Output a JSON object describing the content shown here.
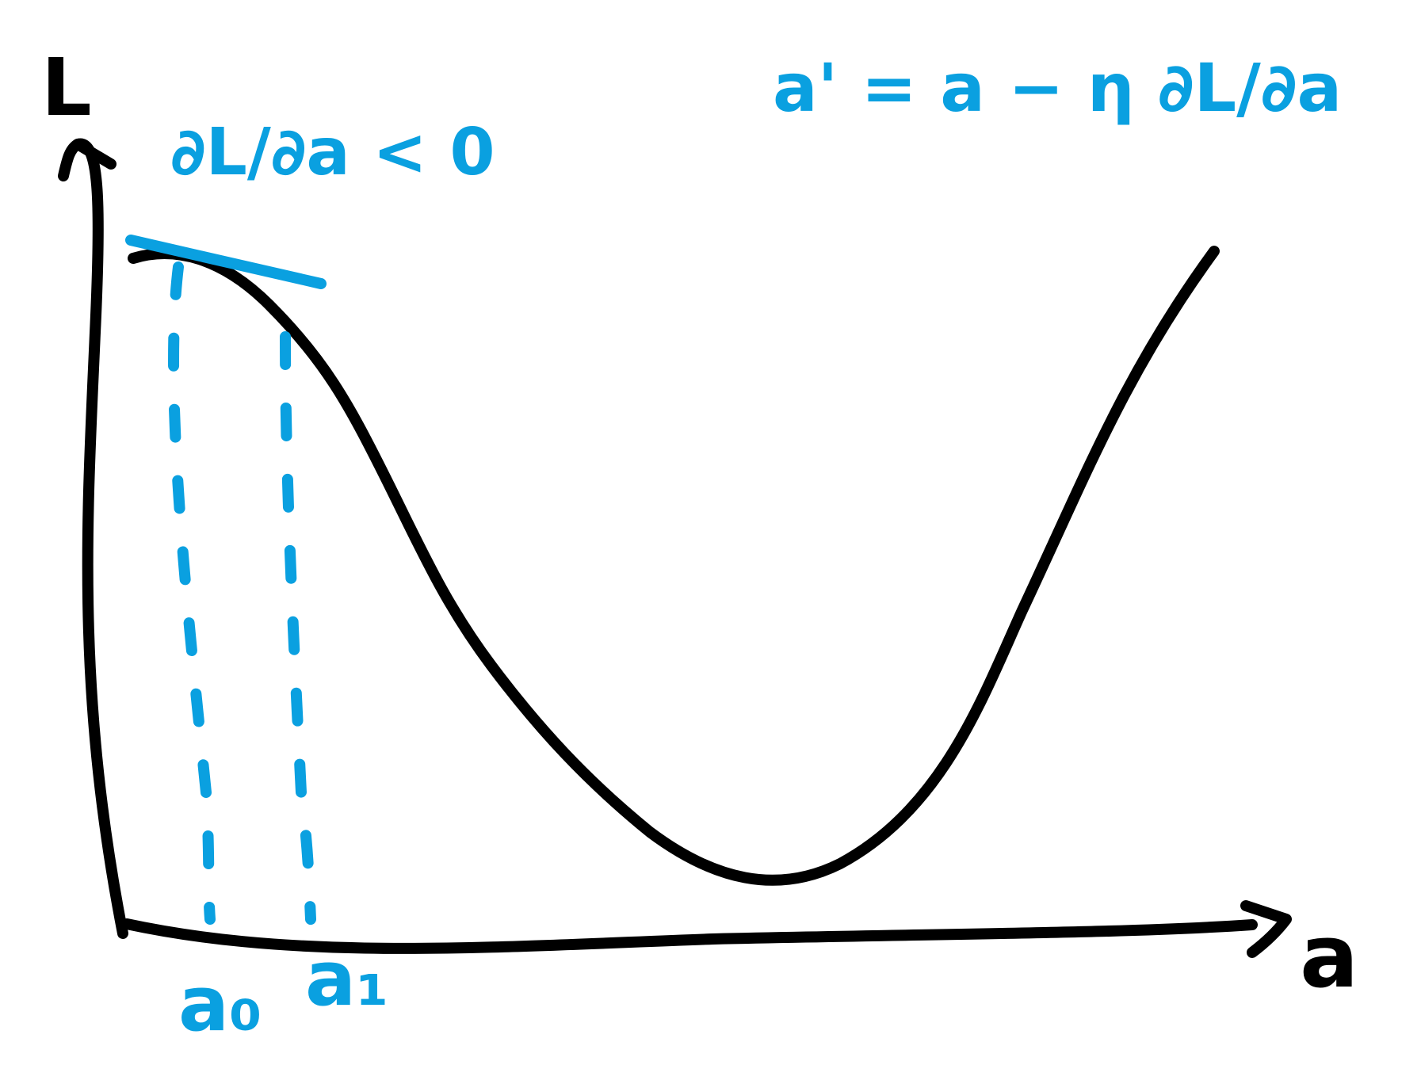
{
  "colors": {
    "ink": "#000000",
    "accent": "#0aa0e0",
    "background": "#ffffff"
  },
  "axes": {
    "y_label": "L",
    "x_label": "a"
  },
  "annotations": {
    "gradient_condition": "∂L/∂a < 0",
    "update_rule": "a' = a − η ∂L/∂a"
  },
  "ticks": {
    "a0": "a₀",
    "a1": "a₁"
  }
}
